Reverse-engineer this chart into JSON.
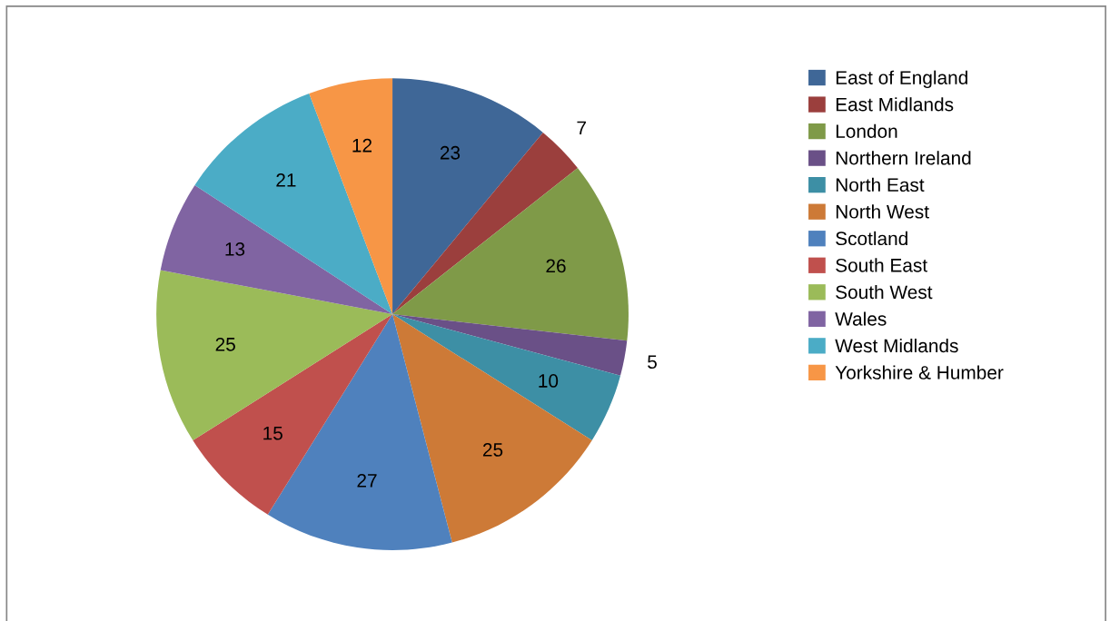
{
  "chart_data": {
    "type": "pie",
    "categories": [
      "East of England",
      "East Midlands",
      "London",
      "Northern Ireland",
      "North East",
      "North West",
      "Scotland",
      "South East",
      "South West",
      "Wales",
      "West Midlands",
      "Yorkshire & Humber"
    ],
    "values": [
      23,
      7,
      26,
      5,
      10,
      25,
      27,
      15,
      25,
      13,
      21,
      12
    ],
    "colors": [
      "#3f6797",
      "#9b3f3d",
      "#7f9a48",
      "#6a5087",
      "#3d8fa5",
      "#cd7a37",
      "#4f81bd",
      "#c0504d",
      "#9bbb59",
      "#8064a2",
      "#4bacc6",
      "#f79646"
    ],
    "data_labels": true,
    "legend": "right"
  }
}
